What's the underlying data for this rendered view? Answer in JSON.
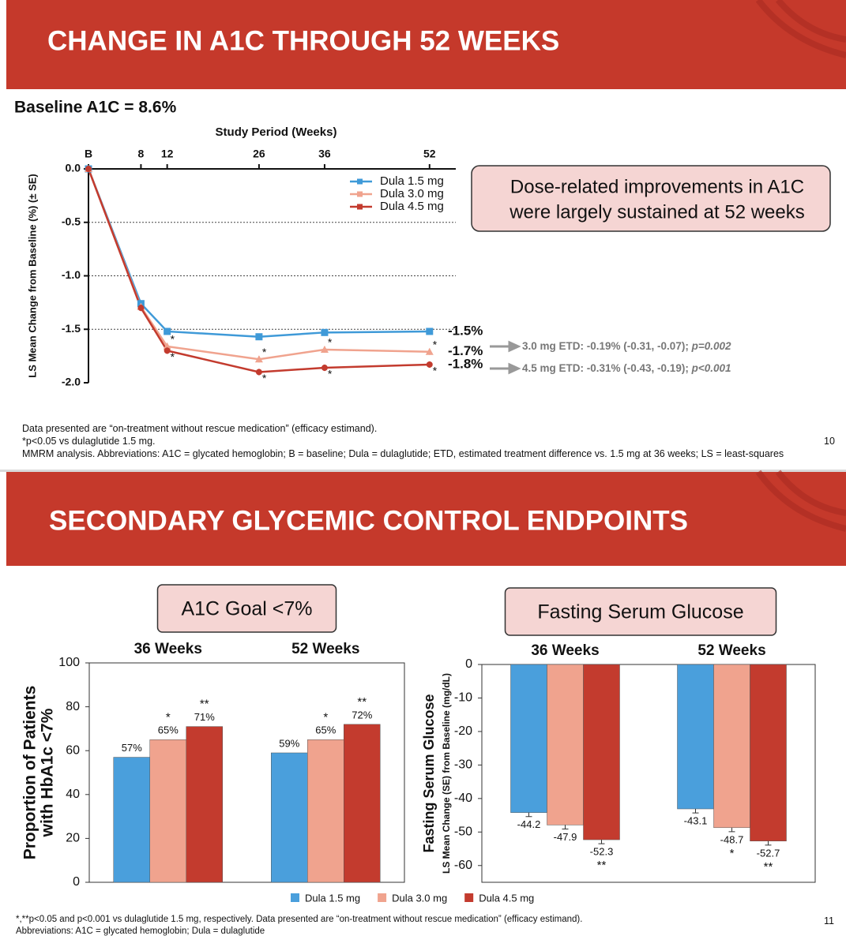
{
  "slides": [
    {
      "title": "CHANGE IN A1C THROUGH 52 WEEKS",
      "subtitle": "Baseline A1C = 8.6%",
      "callout": [
        "Dose-related improvements in A1C",
        "were largely sustained at 52 weeks"
      ],
      "etd": [
        {
          "text": "3.0 mg ETD: -0.19% (-0.31, -0.07); ",
          "p": "p=0.002"
        },
        {
          "text": "4.5 mg ETD: -0.31% (-0.43, -0.19); ",
          "p": "p<0.001"
        }
      ],
      "footnotes": [
        "Data presented are “on-treatment without rescue medication” (efficacy estimand).",
        "*p<0.05 vs dulaglutide 1.5 mg.",
        "MMRM analysis. Abbreviations: A1C = glycated hemoglobin; B = baseline; Dula = dulaglutide; ETD, estimated treatment difference vs. 1.5 mg at 36 weeks; LS = least-squares"
      ],
      "page_number": "10"
    },
    {
      "title": "SECONDARY GLYCEMIC CONTROL ENDPOINTS",
      "footnotes": [
        "*,**p<0.05 and p<0.001 vs dulaglutide 1.5 mg, respectively. Data presented are “on-treatment without rescue medication” (efficacy estimand).",
        "Abbreviations: A1C = glycated hemoglobin; Dula = dulaglutide"
      ],
      "page_number": "11"
    }
  ],
  "chart_data": [
    {
      "type": "line",
      "xlabel": "Study Period (Weeks)",
      "ylabel": "LS Mean Change from Baseline (%) (± SE)",
      "x": [
        0,
        8,
        12,
        26,
        36,
        52
      ],
      "xlim": [
        0,
        56
      ],
      "xticks": [
        {
          "value": 0,
          "label": "B"
        },
        8,
        12,
        26,
        36,
        52
      ],
      "ylim": [
        -2,
        0
      ],
      "yticks": [
        {
          "value": 0,
          "label": "0.0"
        },
        -0.5,
        {
          "value": -1,
          "label": "-1.0"
        },
        -1.5,
        {
          "value": -2,
          "label": "-2.0"
        }
      ],
      "grid": true,
      "legend": "top-right",
      "series": [
        {
          "name": "Dula 1.5 mg",
          "color": "#3f9ad8",
          "marker": "square",
          "values": [
            0,
            -1.26,
            -1.52,
            -1.57,
            -1.53,
            -1.52
          ],
          "errors": [
            0,
            0.03,
            0.03,
            0.03,
            0.03,
            0.03
          ],
          "end_label": "-1.5%"
        },
        {
          "name": "Dula 3.0 mg",
          "color": "#f0a38e",
          "marker": "triangle",
          "values": [
            0,
            -1.29,
            -1.66,
            -1.78,
            -1.69,
            -1.71
          ],
          "errors": [
            0,
            0.03,
            0.03,
            0.03,
            0.03,
            0.03
          ],
          "significance": [
            null,
            null,
            "*",
            "*",
            "*",
            "*"
          ],
          "end_label": "-1.7%"
        },
        {
          "name": "Dula 4.5 mg",
          "color": "#c33b2e",
          "marker": "circle",
          "values": [
            0,
            -1.3,
            -1.7,
            -1.9,
            -1.86,
            -1.83
          ],
          "errors": [
            0,
            0.03,
            0.03,
            0.03,
            0.03,
            0.03
          ],
          "significance": [
            null,
            null,
            "*",
            "*",
            "*",
            "*"
          ],
          "end_label": "-1.8%"
        }
      ]
    },
    {
      "type": "bar",
      "title": "A1C Goal <7%",
      "ylabel": [
        "Proportion of Patients",
        "with HbA1c <7%"
      ],
      "categories": [
        "36 Weeks",
        "52 Weeks"
      ],
      "ylim": [
        0,
        100
      ],
      "yticks": [
        0,
        20,
        40,
        60,
        80,
        100
      ],
      "grid": false,
      "legend": "bottom",
      "series": [
        {
          "name": "Dula 1.5 mg",
          "color": "#4a9fdc",
          "values": [
            57,
            59
          ],
          "value_labels": [
            "57%",
            "59%"
          ]
        },
        {
          "name": "Dula 3.0 mg",
          "color": "#f0a38e",
          "values": [
            65,
            65
          ],
          "value_labels": [
            "65%",
            "65%"
          ],
          "significance": [
            "*",
            "*"
          ]
        },
        {
          "name": "Dula 4.5 mg",
          "color": "#c33b2e",
          "values": [
            71,
            72
          ],
          "value_labels": [
            "71%",
            "72%"
          ],
          "significance": [
            "**",
            "**"
          ]
        }
      ]
    },
    {
      "type": "bar",
      "title": "Fasting Serum Glucose",
      "ylabel": [
        "Fasting Serum Glucose",
        "LS Mean Change (SE) from Baseline (mg/dL)"
      ],
      "categories": [
        "36 Weeks",
        "52 Weeks"
      ],
      "ylim": [
        -65,
        0
      ],
      "yticks": [
        0,
        -10,
        -20,
        -30,
        -40,
        -50,
        -60
      ],
      "grid": false,
      "series": [
        {
          "color": "#4a9fdc",
          "values": [
            -44.2,
            -43.1
          ],
          "errors": [
            1.2,
            1.2
          ]
        },
        {
          "color": "#f0a38e",
          "values": [
            -47.9,
            -48.7
          ],
          "errors": [
            1.2,
            1.2
          ],
          "significance": [
            null,
            "*"
          ]
        },
        {
          "color": "#c33b2e",
          "values": [
            -52.3,
            -52.7
          ],
          "errors": [
            1.2,
            1.2
          ],
          "significance": [
            "**",
            "**"
          ]
        }
      ]
    }
  ]
}
